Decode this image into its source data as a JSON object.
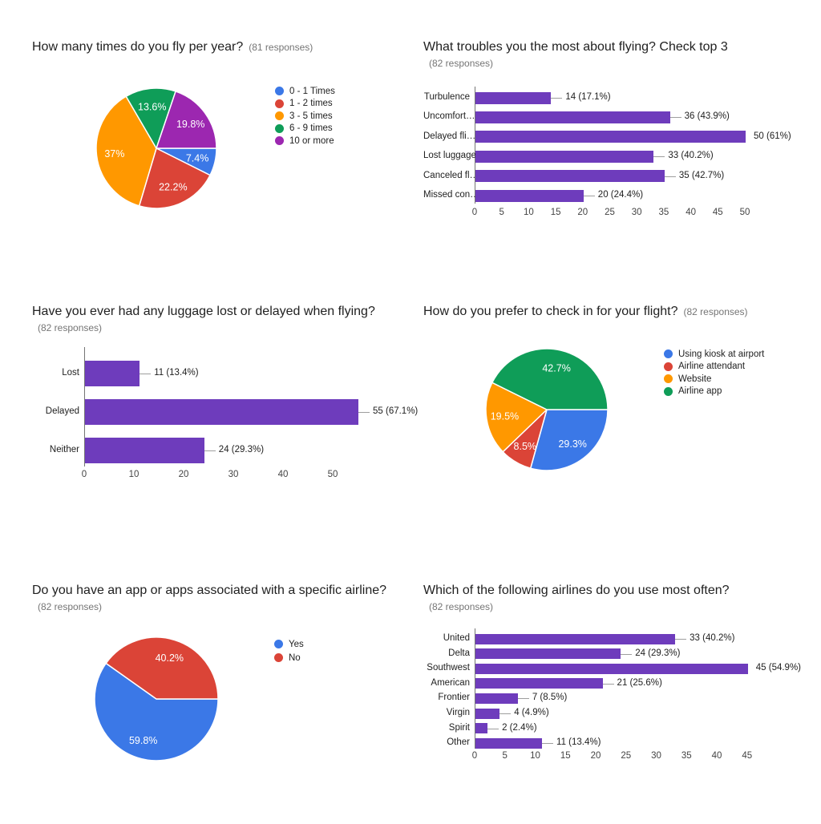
{
  "page": {
    "background": "#ffffff"
  },
  "colors": {
    "bar_purple": "#6E3CBC",
    "pie_blue": "#3B78E7",
    "pie_red": "#DB4437",
    "pie_orange": "#FF9800",
    "pie_green": "#0F9D58",
    "pie_magenta": "#9C27B0",
    "axis_line": "#757575",
    "whisker_gray": "#9E9E9E",
    "title_text": "#212121",
    "note_text": "#757575",
    "slice_label_text": "#FFFFFF"
  },
  "chart_data": [
    {
      "id": "fly-per-year",
      "type": "pie",
      "title": "How many times do you fly per year?",
      "responses_note": "(81 responses)",
      "note_inline": true,
      "legend_position": "right",
      "start_angle": "3-oclock",
      "direction": "clockwise",
      "labels": [
        "0 - 1 Times",
        "1 - 2 times",
        "3 - 5 times",
        "6 - 9 times",
        "10 or more"
      ],
      "values_pct": [
        7.4,
        22.2,
        37,
        13.6,
        19.8
      ],
      "slice_labels": [
        "7.4%",
        "22.2%",
        "37%",
        "13.6%",
        "19.8%"
      ],
      "colors": [
        "#3B78E7",
        "#DB4437",
        "#FF9800",
        "#0F9D58",
        "#9C27B0"
      ]
    },
    {
      "id": "flying-troubles",
      "type": "bar",
      "orientation": "horizontal",
      "title": "What troubles you the most about flying? Check top 3",
      "responses_note": "(82 responses)",
      "note_inline": false,
      "categories": [
        "Turbulence",
        "Uncomfort…",
        "Delayed fli…",
        "Lost luggage",
        "Canceled fl…",
        "Missed con…"
      ],
      "values": [
        14,
        36,
        50,
        33,
        35,
        20
      ],
      "value_labels": [
        "14 (17.1%)",
        "36 (43.9%)",
        "50 (61%)",
        "33 (40.2%)",
        "35 (42.7%)",
        "20 (24.4%)"
      ],
      "bar_color": "#6E3CBC",
      "xticks": [
        0,
        5,
        10,
        15,
        20,
        25,
        30,
        35,
        40,
        45,
        50
      ],
      "xlim": [
        0,
        53
      ],
      "grid": false
    },
    {
      "id": "luggage-lost-delayed",
      "type": "bar",
      "orientation": "horizontal",
      "title": "Have you ever had any luggage lost or delayed when flying?",
      "responses_note": "(82 responses)",
      "note_inline": false,
      "categories": [
        "Lost",
        "Delayed",
        "Neither"
      ],
      "values": [
        11,
        55,
        24
      ],
      "value_labels": [
        "11 (13.4%)",
        "55 (67.1%)",
        "24 (29.3%)"
      ],
      "bar_color": "#6E3CBC",
      "xticks": [
        0,
        10,
        20,
        30,
        40,
        50
      ],
      "xlim": [
        0,
        58
      ],
      "grid": false
    },
    {
      "id": "checkin-preference",
      "type": "pie",
      "title": "How do you prefer to check in for your flight?",
      "responses_note": "(82 responses)",
      "note_inline": true,
      "legend_position": "right",
      "start_angle": "3-oclock",
      "direction": "clockwise",
      "labels": [
        "Using kiosk at airport",
        "Airline attendant",
        "Website",
        "Airline app"
      ],
      "values_pct": [
        29.3,
        8.5,
        19.5,
        42.7
      ],
      "slice_labels": [
        "29.3%",
        "8.5%",
        "19.5%",
        "42.7%"
      ],
      "colors": [
        "#3B78E7",
        "#DB4437",
        "#FF9800",
        "#0F9D58"
      ]
    },
    {
      "id": "airline-app",
      "type": "pie",
      "title": "Do you have an app or apps associated with a specific airline?",
      "responses_note": "(82 responses)",
      "note_inline": false,
      "legend_position": "right",
      "start_angle": "3-oclock",
      "direction": "clockwise",
      "labels": [
        "Yes",
        "No"
      ],
      "values_pct": [
        59.8,
        40.2
      ],
      "slice_labels": [
        "59.8%",
        "40.2%"
      ],
      "colors": [
        "#3B78E7",
        "#DB4437"
      ]
    },
    {
      "id": "airline-most-used",
      "type": "bar",
      "orientation": "horizontal",
      "title": "Which of the following airlines do you use most often?",
      "responses_note": "(82 responses)",
      "note_inline": false,
      "categories": [
        "United",
        "Delta",
        "Southwest",
        "American",
        "Frontier",
        "Virgin",
        "Spirit",
        "Other"
      ],
      "values": [
        33,
        24,
        45,
        21,
        7,
        4,
        2,
        11
      ],
      "value_labels": [
        "33 (40.2%)",
        "24 (29.3%)",
        "45 (54.9%)",
        "21 (25.6%)",
        "7 (8.5%)",
        "4 (4.9%)",
        "2 (2.4%)",
        "11 (13.4%)"
      ],
      "bar_color": "#6E3CBC",
      "xticks": [
        0,
        5,
        10,
        15,
        20,
        25,
        30,
        35,
        40,
        45
      ],
      "xlim": [
        0,
        48
      ],
      "grid": false
    }
  ]
}
